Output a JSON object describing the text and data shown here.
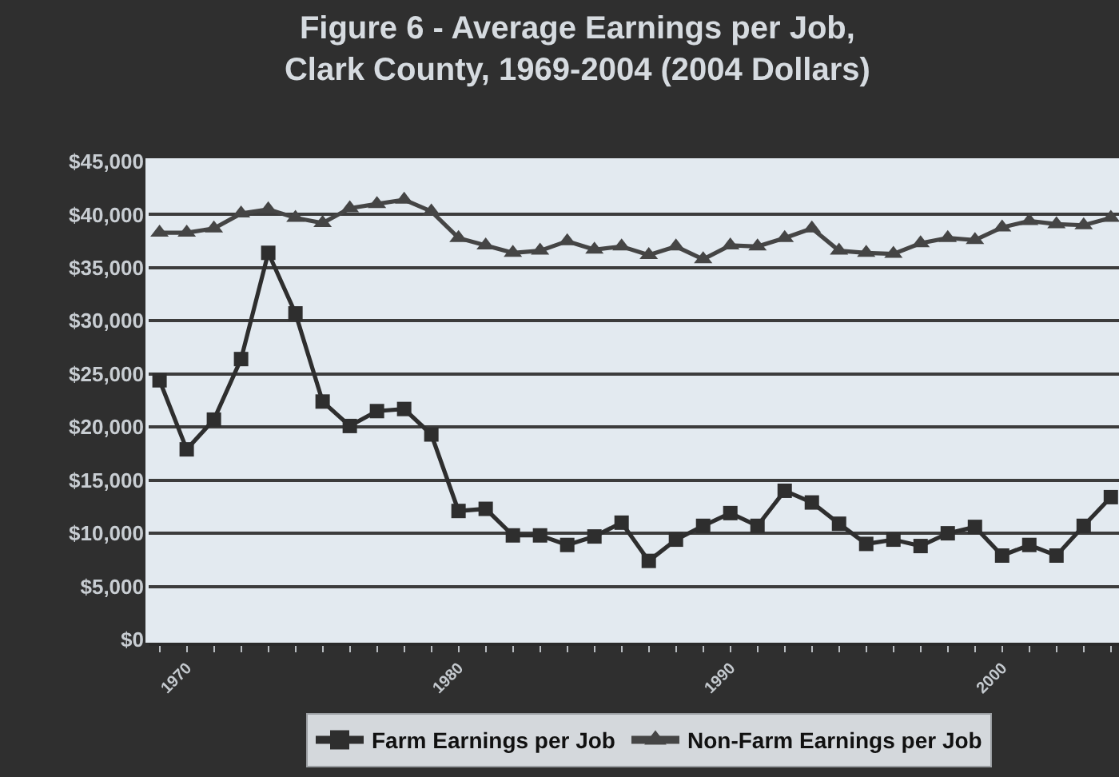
{
  "chart_data": {
    "type": "line",
    "title": "Figure 6 - Average Earnings per Job,\nClark County, 1969-2004 (2004 Dollars)",
    "x": [
      1969,
      1970,
      1971,
      1972,
      1973,
      1974,
      1975,
      1976,
      1977,
      1978,
      1979,
      1980,
      1981,
      1982,
      1983,
      1984,
      1985,
      1986,
      1987,
      1988,
      1989,
      1990,
      1991,
      1992,
      1993,
      1994,
      1995,
      1996,
      1997,
      1998,
      1999,
      2000,
      2001,
      2002,
      2003,
      2004
    ],
    "series": [
      {
        "name": "Farm Earnings per Job",
        "color": "#2e2e2e",
        "marker": "square",
        "values": [
          24400,
          17900,
          20700,
          26400,
          36400,
          30700,
          22400,
          20100,
          21500,
          21700,
          19300,
          12100,
          12300,
          9800,
          9800,
          8900,
          9700,
          11000,
          7400,
          9400,
          10700,
          11900,
          10700,
          14000,
          12900,
          10900,
          9000,
          9400,
          8800,
          10000,
          10600,
          7900,
          8900,
          7900,
          10700,
          13400
        ]
      },
      {
        "name": "Non-Farm Earnings per Job",
        "color": "#454545",
        "marker": "triangle",
        "values": [
          38300,
          38300,
          38700,
          40100,
          40500,
          39700,
          39200,
          40600,
          41000,
          41400,
          40300,
          37800,
          37100,
          36400,
          36600,
          37500,
          36700,
          37000,
          36200,
          37000,
          35800,
          37100,
          37000,
          37800,
          38700,
          36600,
          36400,
          36300,
          37300,
          37800,
          37600,
          38800,
          39400,
          39100,
          39000,
          39700
        ]
      }
    ],
    "xlim": [
      1968.6,
      2004.3
    ],
    "xticks": [
      {
        "value": 1969,
        "label": null
      },
      1970,
      {
        "value": 1971,
        "label": null
      },
      {
        "value": 1972,
        "label": null
      },
      {
        "value": 1973,
        "label": null
      },
      {
        "value": 1974,
        "label": null
      },
      {
        "value": 1975,
        "label": null
      },
      {
        "value": 1976,
        "label": null
      },
      {
        "value": 1977,
        "label": null
      },
      {
        "value": 1978,
        "label": null
      },
      {
        "value": 1979,
        "label": null
      },
      1980,
      {
        "value": 1981,
        "label": null
      },
      {
        "value": 1982,
        "label": null
      },
      {
        "value": 1983,
        "label": null
      },
      {
        "value": 1984,
        "label": null
      },
      {
        "value": 1985,
        "label": null
      },
      {
        "value": 1986,
        "label": null
      },
      {
        "value": 1987,
        "label": null
      },
      {
        "value": 1988,
        "label": null
      },
      {
        "value": 1989,
        "label": null
      },
      1990,
      {
        "value": 1991,
        "label": null
      },
      {
        "value": 1992,
        "label": null
      },
      {
        "value": 1993,
        "label": null
      },
      {
        "value": 1994,
        "label": null
      },
      {
        "value": 1995,
        "label": null
      },
      {
        "value": 1996,
        "label": null
      },
      {
        "value": 1997,
        "label": null
      },
      {
        "value": 1998,
        "label": null
      },
      {
        "value": 1999,
        "label": null
      },
      2000,
      {
        "value": 2001,
        "label": null
      },
      {
        "value": 2002,
        "label": null
      },
      {
        "value": 2003,
        "label": null
      },
      {
        "value": 2004,
        "label": null
      }
    ],
    "ylim": [
      0,
      45000
    ],
    "yticks": [
      {
        "value": 0,
        "label": "$0"
      },
      {
        "value": 5000,
        "label": "$5,000"
      },
      {
        "value": 10000,
        "label": "$10,000"
      },
      {
        "value": 15000,
        "label": "$15,000"
      },
      {
        "value": 20000,
        "label": "$20,000"
      },
      {
        "value": 25000,
        "label": "$25,000"
      },
      {
        "value": 30000,
        "label": "$30,000"
      },
      {
        "value": 35000,
        "label": "$35,000"
      },
      {
        "value": 40000,
        "label": "$40,000"
      },
      {
        "value": 45000,
        "label": "$45,000"
      }
    ],
    "grid": "y",
    "legend": "bottom",
    "line_style": "solid"
  }
}
